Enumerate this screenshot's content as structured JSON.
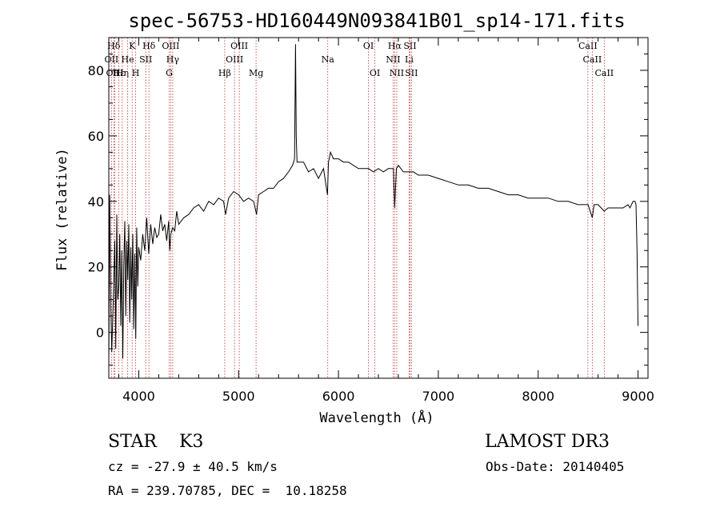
{
  "chart_data": {
    "type": "line",
    "title": "spec-56753-HD160449N093841B01_sp14-171.fits",
    "xlabel": "Wavelength (Å)",
    "ylabel": "Flux (relative)",
    "xlim": [
      3700,
      9100
    ],
    "ylim": [
      -14,
      90
    ],
    "xticks": [
      4000,
      5000,
      6000,
      7000,
      8000,
      9000
    ],
    "yticks": [
      0,
      20,
      40,
      60,
      80
    ],
    "grid": false,
    "lines": [
      {
        "label": "Hδ",
        "wl": 3750,
        "row": 0
      },
      {
        "label": "OII",
        "wl": 3727,
        "row": 1
      },
      {
        "label": "OIII",
        "wl": 3760,
        "row": 2
      },
      {
        "label": "Hε",
        "wl": 3800,
        "row": 2
      },
      {
        "label": "Hη",
        "wl": 3835,
        "row": 2
      },
      {
        "label": "He",
        "wl": 3889,
        "row": 1
      },
      {
        "label": "K",
        "wl": 3934,
        "row": 0
      },
      {
        "label": "H",
        "wl": 3969,
        "row": 2
      },
      {
        "label": "SII",
        "wl": 4070,
        "row": 1
      },
      {
        "label": "Hδ",
        "wl": 4102,
        "row": 0
      },
      {
        "label": "OIII",
        "wl": 4320,
        "row": 0
      },
      {
        "label": "Hγ",
        "wl": 4340,
        "row": 1
      },
      {
        "label": "G",
        "wl": 4305,
        "row": 2
      },
      {
        "label": "Hβ",
        "wl": 4861,
        "row": 2
      },
      {
        "label": "OIII",
        "wl": 4959,
        "row": 1
      },
      {
        "label": "OIII",
        "wl": 5007,
        "row": 0
      },
      {
        "label": "Mg",
        "wl": 5175,
        "row": 2
      },
      {
        "label": "Na",
        "wl": 5893,
        "row": 1
      },
      {
        "label": "OI",
        "wl": 6300,
        "row": 0
      },
      {
        "label": "OI",
        "wl": 6364,
        "row": 2
      },
      {
        "label": "NII",
        "wl": 6548,
        "row": 1
      },
      {
        "label": "Hα",
        "wl": 6563,
        "row": 0
      },
      {
        "label": "NII",
        "wl": 6584,
        "row": 2
      },
      {
        "label": "SII",
        "wl": 6716,
        "row": 0
      },
      {
        "label": "Li",
        "wl": 6708,
        "row": 1
      },
      {
        "label": "SII",
        "wl": 6731,
        "row": 2
      },
      {
        "label": "CaII",
        "wl": 8498,
        "row": 0
      },
      {
        "label": "CaII",
        "wl": 8542,
        "row": 1
      },
      {
        "label": "CaII",
        "wl": 8662,
        "row": 2
      }
    ],
    "series": [
      {
        "x": [
          3700,
          3710,
          3720,
          3730,
          3740,
          3750,
          3760,
          3770,
          3780,
          3790,
          3800,
          3810,
          3820,
          3830,
          3840,
          3850,
          3860,
          3870,
          3880,
          3890,
          3900,
          3910,
          3920,
          3930,
          3940,
          3950,
          3960,
          3970,
          3980,
          3990,
          4000,
          4020,
          4040,
          4060,
          4080,
          4100,
          4120,
          4140,
          4160,
          4180,
          4200,
          4220,
          4240,
          4260,
          4280,
          4300,
          4310,
          4320,
          4340,
          4360,
          4380,
          4400,
          4450,
          4500,
          4550,
          4600,
          4650,
          4700,
          4750,
          4800,
          4850,
          4870,
          4900,
          4950,
          5000,
          5050,
          5100,
          5150,
          5180,
          5200,
          5250,
          5300,
          5350,
          5400,
          5450,
          5500,
          5540,
          5560,
          5570,
          5577,
          5585,
          5600,
          5650,
          5700,
          5750,
          5800,
          5850,
          5890,
          5900,
          5920,
          5950,
          6000,
          6050,
          6100,
          6150,
          6200,
          6250,
          6300,
          6350,
          6400,
          6450,
          6500,
          6550,
          6563,
          6580,
          6600,
          6650,
          6700,
          6750,
          6800,
          6900,
          7000,
          7100,
          7200,
          7300,
          7400,
          7500,
          7600,
          7700,
          7800,
          7900,
          8000,
          8100,
          8200,
          8300,
          8400,
          8500,
          8542,
          8560,
          8600,
          8662,
          8700,
          8750,
          8800,
          8850,
          8900,
          8920,
          8950,
          8970,
          8980,
          8990,
          9000
        ],
        "y": [
          -10,
          42,
          8,
          -6,
          5,
          15,
          28,
          -5,
          36,
          10,
          14,
          30,
          2,
          25,
          -8,
          20,
          34,
          5,
          28,
          16,
          33,
          3,
          26,
          10,
          30,
          1,
          24,
          -2,
          32,
          14,
          26,
          22,
          30,
          25,
          35,
          24,
          33,
          27,
          32,
          29,
          30,
          36,
          31,
          33,
          28,
          34,
          25,
          30,
          32,
          31,
          37,
          33,
          35,
          36,
          38,
          39,
          37,
          40,
          39,
          41,
          40,
          36,
          41,
          43,
          42,
          40,
          41,
          40,
          36,
          42,
          43,
          44,
          44,
          46,
          47,
          49,
          51,
          53,
          88,
          60,
          52,
          52,
          52,
          49,
          50,
          47,
          50,
          42,
          52,
          55,
          53,
          53,
          52,
          52,
          51,
          50,
          50,
          50,
          49,
          50,
          49,
          50,
          50,
          38,
          50,
          51,
          49,
          49,
          49,
          48,
          48,
          47,
          46,
          45,
          45,
          44,
          44,
          43,
          42,
          42,
          41,
          41,
          41,
          40,
          40,
          39,
          39,
          35,
          39,
          39,
          37,
          38,
          38,
          38,
          38,
          39,
          38,
          40,
          40,
          39,
          25,
          2
        ]
      }
    ]
  },
  "info": {
    "object": "STAR    K3",
    "survey": "LAMOST DR3",
    "cz": "cz = -27.9 ± 40.5 km/s",
    "obs_date": "Obs-Date: 20140405",
    "radec": "RA = 239.70785, DEC =  10.18258"
  }
}
